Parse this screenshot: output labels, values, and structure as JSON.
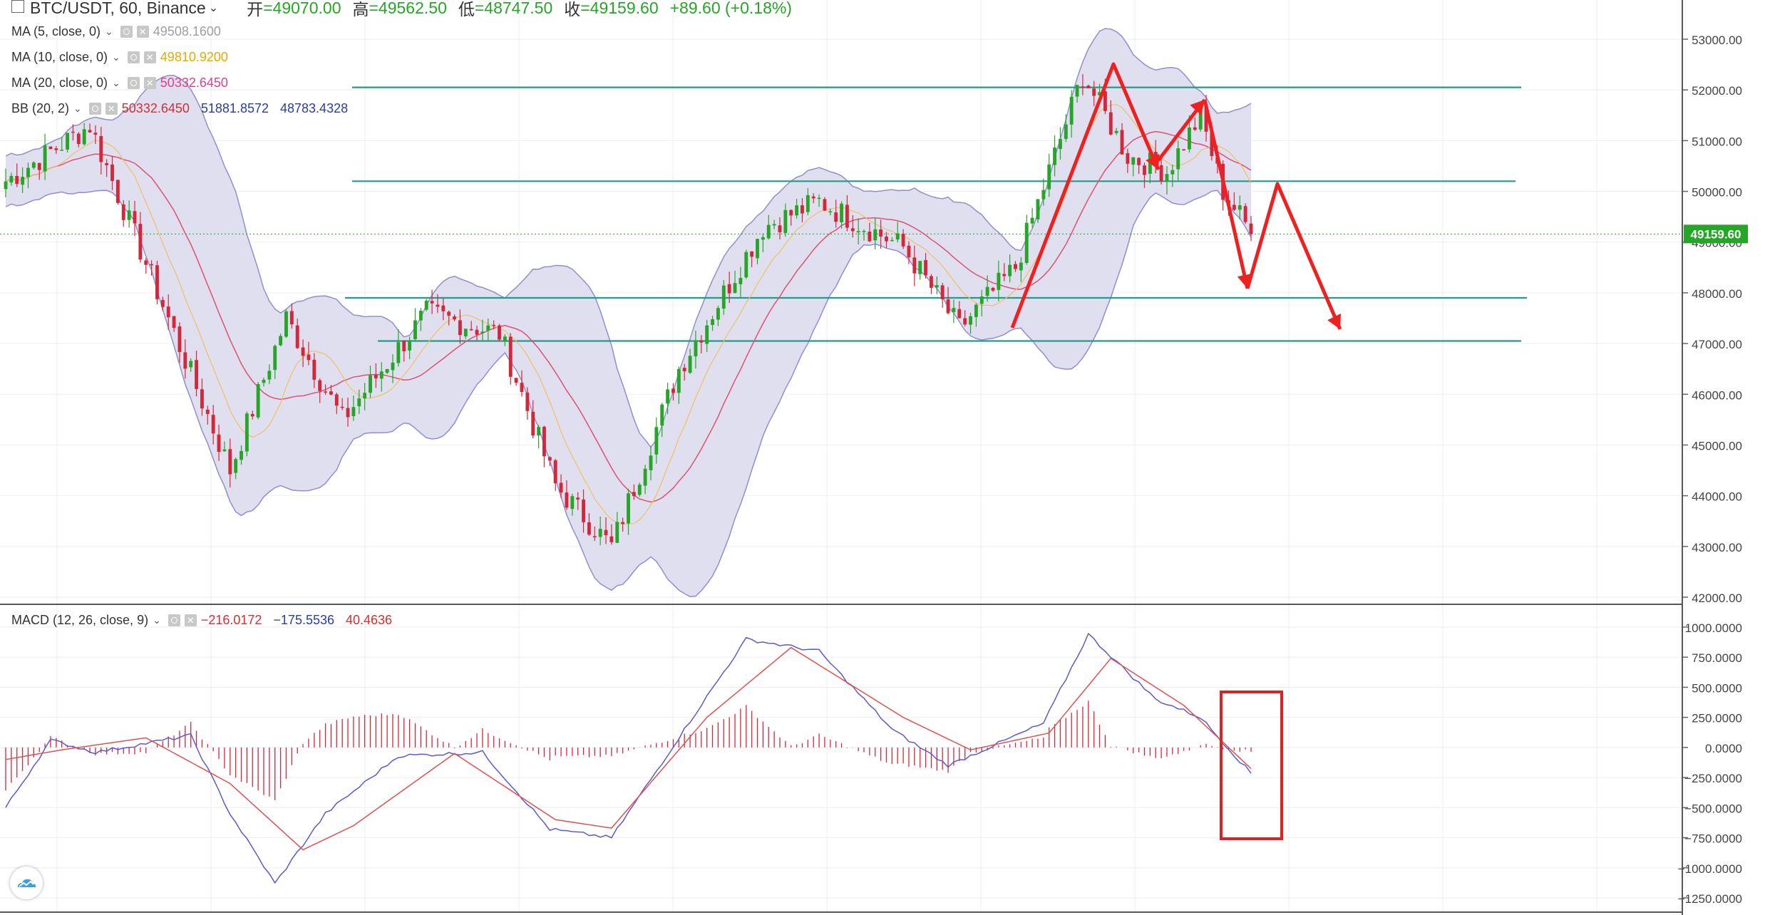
{
  "header": {
    "symbol": "BTC/USDT, 60, Binance",
    "open_label": "开",
    "open": "=49070.00",
    "high_label": "高",
    "high": "=49562.50",
    "low_label": "低",
    "low": "=48747.50",
    "close_label": "收",
    "close": "=49159.60",
    "change": "+89.60 (+0.18%)"
  },
  "indicators": [
    {
      "label": "MA (5, close, 0)",
      "values": [
        "49508.1600"
      ],
      "colors": [
        "#9e9e9e"
      ]
    },
    {
      "label": "MA (10, close, 0)",
      "values": [
        "49810.9200"
      ],
      "colors": [
        "#e8a800"
      ]
    },
    {
      "label": "MA (20, close, 0)",
      "values": [
        "50332.6450"
      ],
      "colors": [
        "#e0408f"
      ]
    },
    {
      "label": "BB (20, 2)",
      "values": [
        "50332.6450",
        "51881.8572",
        "48783.4328"
      ],
      "colors": [
        "#d03030",
        "#2a3fa0",
        "#2a3fa0"
      ]
    }
  ],
  "macd_legend": {
    "label": "MACD (12, 26, close, 9)",
    "values": [
      "−216.0172",
      "−175.5536",
      "40.4636"
    ],
    "colors": [
      "#d03030",
      "#2a3fa0",
      "#d03030"
    ]
  },
  "colors": {
    "up": "#26a626",
    "down": "#d3283b",
    "bb_fill": "#dfdff0",
    "bb_line": "#8f8fd0",
    "level": "#1f9c8a",
    "annot": "#f02020",
    "macd": "#5a5ad0",
    "signal": "#e05050"
  },
  "chart_data": [
    {
      "type": "candlestick",
      "title": "BTC/USDT, 60, Binance",
      "y_ticks": [
        "53000.00",
        "52000.00",
        "51000.00",
        "50000.00",
        "49000.00",
        "48000.00",
        "47000.00",
        "46000.00",
        "45000.00",
        "44000.00",
        "43000.00",
        "42000.00"
      ],
      "ylim": [
        42000,
        53000
      ],
      "last_price": "49159.60",
      "horizontal_levels": [
        52050,
        50200,
        47900,
        47050
      ],
      "key_points": [
        {
          "x": 0,
          "y": 50200
        },
        {
          "x": 15,
          "y": 51300
        },
        {
          "x": 40,
          "y": 44500
        },
        {
          "x": 50,
          "y": 47500
        },
        {
          "x": 60,
          "y": 45500
        },
        {
          "x": 75,
          "y": 47600
        },
        {
          "x": 88,
          "y": 47200
        },
        {
          "x": 98,
          "y": 44200
        },
        {
          "x": 108,
          "y": 43000
        },
        {
          "x": 120,
          "y": 46500
        },
        {
          "x": 135,
          "y": 49300
        },
        {
          "x": 145,
          "y": 49800
        },
        {
          "x": 160,
          "y": 48900
        },
        {
          "x": 170,
          "y": 47300
        },
        {
          "x": 180,
          "y": 48500
        },
        {
          "x": 192,
          "y": 52300
        },
        {
          "x": 200,
          "y": 50700
        },
        {
          "x": 207,
          "y": 50400
        },
        {
          "x": 213,
          "y": 51500
        },
        {
          "x": 217,
          "y": 50000
        },
        {
          "x": 222,
          "y": 49200
        }
      ],
      "candle_count": 223
    },
    {
      "type": "line",
      "title": "MACD (12, 26, close, 9)",
      "y_ticks": [
        "1000.0000",
        "750.0000",
        "500.0000",
        "250.0000",
        "0.0000",
        "−250.0000",
        "−500.0000",
        "−750.0000",
        "−1000.0000",
        "−1250.0000"
      ],
      "ylim": [
        -1250,
        1000
      ],
      "macd_points": [
        {
          "x": 0,
          "y": -500
        },
        {
          "x": 8,
          "y": 60
        },
        {
          "x": 16,
          "y": -40
        },
        {
          "x": 33,
          "y": 100
        },
        {
          "x": 40,
          "y": -550
        },
        {
          "x": 48,
          "y": -1130
        },
        {
          "x": 57,
          "y": -550
        },
        {
          "x": 70,
          "y": -70
        },
        {
          "x": 85,
          "y": -40
        },
        {
          "x": 97,
          "y": -680
        },
        {
          "x": 108,
          "y": -750
        },
        {
          "x": 121,
          "y": 150
        },
        {
          "x": 132,
          "y": 900
        },
        {
          "x": 145,
          "y": 800
        },
        {
          "x": 158,
          "y": 150
        },
        {
          "x": 168,
          "y": -150
        },
        {
          "x": 185,
          "y": 200
        },
        {
          "x": 193,
          "y": 940
        },
        {
          "x": 205,
          "y": 400
        },
        {
          "x": 213,
          "y": 250
        },
        {
          "x": 222,
          "y": -216
        }
      ],
      "signal_points": [
        {
          "x": 0,
          "y": -100
        },
        {
          "x": 10,
          "y": -20
        },
        {
          "x": 25,
          "y": 80
        },
        {
          "x": 40,
          "y": -300
        },
        {
          "x": 53,
          "y": -850
        },
        {
          "x": 62,
          "y": -650
        },
        {
          "x": 80,
          "y": -50
        },
        {
          "x": 98,
          "y": -600
        },
        {
          "x": 108,
          "y": -670
        },
        {
          "x": 125,
          "y": 250
        },
        {
          "x": 140,
          "y": 830
        },
        {
          "x": 160,
          "y": 250
        },
        {
          "x": 172,
          "y": -20
        },
        {
          "x": 186,
          "y": 120
        },
        {
          "x": 197,
          "y": 740
        },
        {
          "x": 210,
          "y": 350
        },
        {
          "x": 222,
          "y": -176
        }
      ]
    }
  ]
}
